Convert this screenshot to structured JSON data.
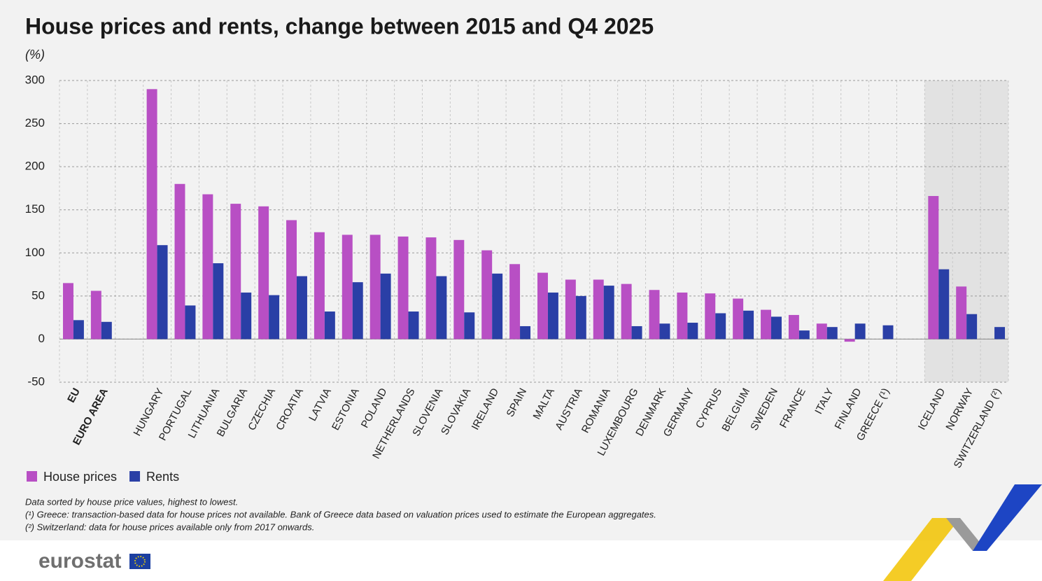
{
  "chart_data": {
    "type": "bar",
    "title": "House prices and rents, change between 2015 and Q4 2025",
    "ylabel": "(%)",
    "categories": [
      "EU",
      "EURO AREA",
      null,
      "HUNGARY",
      "PORTUGAL",
      "LITHUANIA",
      "BULGARIA",
      "CZECHIA",
      "CROATIA",
      "LATVIA",
      "ESTONIA",
      "POLAND",
      "NETHERLANDS",
      "SLOVENIA",
      "SLOVAKIA",
      "IRELAND",
      "SPAIN",
      "MALTA",
      "AUSTRIA",
      "ROMANIA",
      "LUXEMBOURG",
      "DENMARK",
      "GERMANY",
      "CYPRUS",
      "BELGIUM",
      "SWEDEN",
      "FRANCE",
      "ITALY",
      "FINLAND",
      "GREECE (¹)",
      null,
      "ICELAND",
      "NORWAY",
      "SWITZERLAND (²)"
    ],
    "series": [
      {
        "name": "House prices",
        "color": "#b84fc4",
        "values": [
          65,
          56,
          null,
          290,
          180,
          168,
          157,
          154,
          138,
          124,
          121,
          121,
          119,
          118,
          115,
          103,
          87,
          77,
          69,
          69,
          64,
          57,
          54,
          53,
          47,
          34,
          28,
          18,
          -3,
          null,
          null,
          166,
          61,
          null
        ]
      },
      {
        "name": "Rents",
        "color": "#2a3fa6",
        "values": [
          22,
          20,
          null,
          109,
          39,
          88,
          54,
          51,
          73,
          32,
          66,
          76,
          32,
          73,
          31,
          76,
          15,
          54,
          50,
          62,
          15,
          18,
          19,
          30,
          33,
          26,
          10,
          14,
          18,
          16,
          null,
          81,
          29,
          14
        ]
      }
    ],
    "ylim": [
      -50,
      300
    ],
    "yticks": [
      -50,
      0,
      50,
      100,
      150,
      200,
      250,
      300
    ],
    "grid": true,
    "legend": "bottom-left",
    "notes": [
      "Data sorted by house price values, highest to lowest.",
      "(¹) Greece: transaction-based data for house prices not available. Bank of Greece data based on valuation prices used to estimate the European aggregates.",
      "(²) Switzerland: data for house prices available only from 2017 onwards."
    ]
  },
  "logo": "eurostat"
}
